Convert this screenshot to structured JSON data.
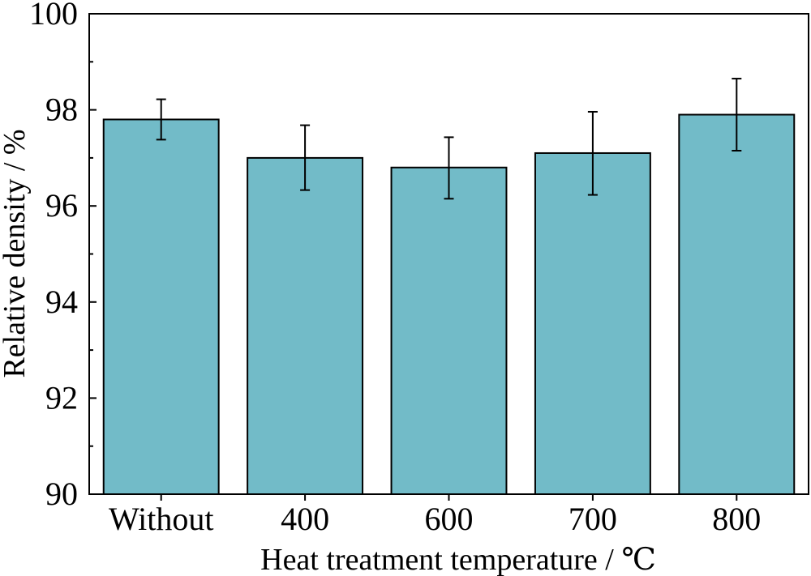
{
  "chart_data": {
    "type": "bar",
    "title": "",
    "xlabel": "Heat treatment temperature / ℃",
    "ylabel": "Relative density / %",
    "categories": [
      "Without",
      "400",
      "600",
      "700",
      "800"
    ],
    "values": [
      97.8,
      97.0,
      96.8,
      97.1,
      97.9
    ],
    "errors_low": [
      97.38,
      96.33,
      96.15,
      96.23,
      97.15
    ],
    "errors_high": [
      98.22,
      97.68,
      97.43,
      97.96,
      98.65
    ],
    "ylim": [
      90,
      100
    ],
    "yticks": [
      90,
      92,
      94,
      96,
      98,
      100
    ],
    "grid": false,
    "colors": {
      "bar_fill": "#72bbc8",
      "bar_stroke": "#000000"
    }
  }
}
